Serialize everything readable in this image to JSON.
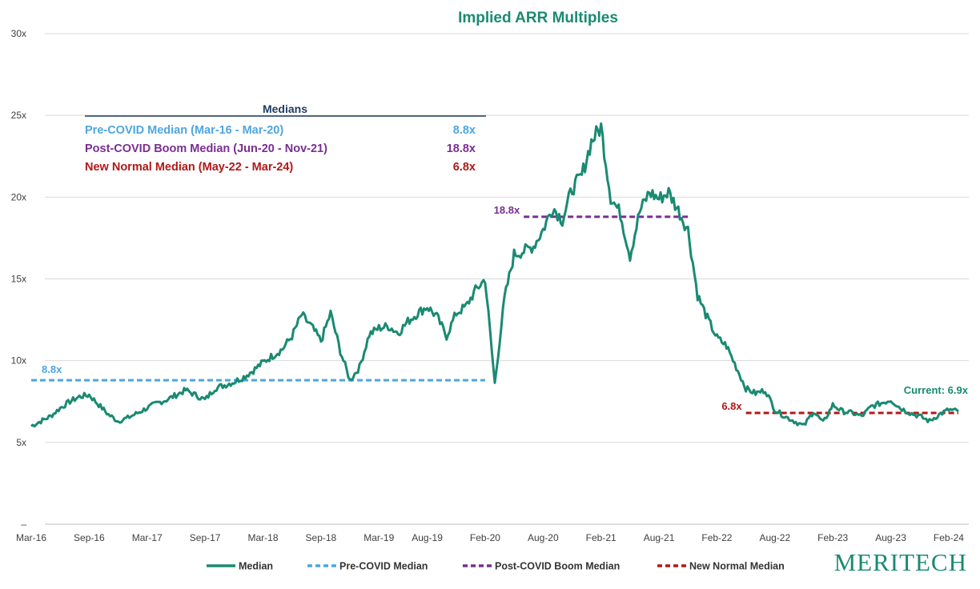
{
  "chart_data": {
    "type": "line",
    "title": "Implied ARR Multiples",
    "ylim": [
      0,
      30
    ],
    "y_ticks": [
      {
        "value": 0,
        "label": "–"
      },
      {
        "value": 5,
        "label": "5x"
      },
      {
        "value": 10,
        "label": "10x"
      },
      {
        "value": 15,
        "label": "15x"
      },
      {
        "value": 20,
        "label": "20x"
      },
      {
        "value": 25,
        "label": "25x"
      },
      {
        "value": 30,
        "label": "30x"
      }
    ],
    "x_ticks": [
      "Mar-16",
      "Sep-16",
      "Mar-17",
      "Sep-17",
      "Mar-18",
      "Sep-18",
      "Mar-19",
      "Aug-19",
      "Feb-20",
      "Aug-20",
      "Feb-21",
      "Aug-21",
      "Feb-22",
      "Aug-22",
      "Feb-23",
      "Aug-23",
      "Feb-24"
    ],
    "grid": "horizontal",
    "legend_position": "bottom",
    "colors": {
      "title": "#1a8a72",
      "median": "#1a8a72",
      "pre_covid": "#4da6e0",
      "post_covid": "#7a2e90",
      "new_normal": "#b01818",
      "medians_header": "#1f3a5f",
      "grid": "#d9d9d9"
    },
    "series": [
      {
        "name": "Median",
        "style": "solid",
        "x": [
          "2016-03",
          "2016-04",
          "2016-05",
          "2016-06",
          "2016-07",
          "2016-08",
          "2016-09",
          "2016-10",
          "2016-11",
          "2016-12",
          "2017-01",
          "2017-02",
          "2017-03",
          "2017-04",
          "2017-05",
          "2017-06",
          "2017-07",
          "2017-08",
          "2017-09",
          "2017-10",
          "2017-11",
          "2017-12",
          "2018-01",
          "2018-02",
          "2018-03",
          "2018-04",
          "2018-05",
          "2018-06",
          "2018-07",
          "2018-08",
          "2018-09",
          "2018-10",
          "2018-11",
          "2018-12",
          "2019-01",
          "2019-02",
          "2019-03",
          "2019-04",
          "2019-05",
          "2019-06",
          "2019-07",
          "2019-08",
          "2019-09",
          "2019-10",
          "2019-11",
          "2019-12",
          "2020-01",
          "2020-02",
          "2020-03",
          "2020-04",
          "2020-05",
          "2020-06",
          "2020-07",
          "2020-08",
          "2020-09",
          "2020-10",
          "2020-11",
          "2020-12",
          "2021-01",
          "2021-02",
          "2021-03",
          "2021-04",
          "2021-05",
          "2021-06",
          "2021-07",
          "2021-08",
          "2021-09",
          "2021-10",
          "2021-11",
          "2021-12",
          "2022-01",
          "2022-02",
          "2022-03",
          "2022-04",
          "2022-05",
          "2022-06",
          "2022-07",
          "2022-08",
          "2022-09",
          "2022-10",
          "2022-11",
          "2022-12",
          "2023-01",
          "2023-02",
          "2023-03",
          "2023-04",
          "2023-05",
          "2023-06",
          "2023-07",
          "2023-08",
          "2023-09",
          "2023-10",
          "2023-11",
          "2023-12",
          "2024-01",
          "2024-02",
          "2024-03"
        ],
        "values": [
          6.0,
          6.3,
          6.6,
          7.1,
          7.5,
          7.8,
          7.9,
          7.3,
          6.7,
          6.3,
          6.5,
          6.8,
          7.1,
          7.4,
          7.6,
          7.9,
          8.2,
          7.9,
          7.6,
          8.3,
          8.5,
          8.7,
          9.0,
          9.4,
          9.9,
          10.3,
          10.7,
          11.5,
          12.8,
          12.1,
          11.2,
          12.9,
          10.6,
          8.8,
          9.6,
          11.6,
          12.0,
          12.1,
          11.7,
          12.4,
          12.9,
          13.3,
          12.7,
          11.5,
          12.9,
          13.3,
          14.3,
          15.0,
          8.6,
          13.8,
          16.5,
          16.7,
          17.0,
          18.0,
          19.4,
          18.6,
          20.5,
          21.3,
          23.4,
          24.3,
          20.0,
          19.0,
          16.4,
          19.1,
          20.3,
          19.9,
          20.3,
          19.2,
          18.0,
          14.0,
          12.6,
          11.4,
          10.9,
          9.6,
          8.3,
          8.0,
          8.2,
          7.0,
          6.6,
          6.3,
          6.0,
          6.9,
          6.2,
          7.3,
          6.9,
          6.8,
          6.6,
          7.2,
          7.4,
          7.6,
          7.1,
          6.8,
          6.6,
          6.3,
          6.7,
          7.0,
          6.9
        ]
      },
      {
        "name": "Pre-COVID Median",
        "style": "dashed",
        "value": 8.8,
        "x_start": "2016-03",
        "x_end": "2020-02",
        "label": "8.8x"
      },
      {
        "name": "Post-COVID Boom Median",
        "style": "dashed",
        "value": 18.8,
        "x_start": "2020-06",
        "x_end": "2021-11",
        "label": "18.8x"
      },
      {
        "name": "New Normal Median",
        "style": "dashed",
        "value": 6.8,
        "x_start": "2022-05",
        "x_end": "2024-03",
        "label": "6.8x"
      }
    ],
    "medians_table": {
      "header": "Medians",
      "rows": [
        {
          "label": "Pre-COVID Median (Mar-16 - Mar-20)",
          "value": "8.8x"
        },
        {
          "label": "Post-COVID Boom Median (Jun-20 - Nov-21)",
          "value": "18.8x"
        },
        {
          "label": "New Normal Median (May-22 - Mar-24)",
          "value": "6.8x"
        }
      ]
    },
    "annotations": [
      {
        "text": "Current: 6.9x",
        "x": "2024-03",
        "y": 6.9
      }
    ]
  },
  "logo_text": "Meritech"
}
